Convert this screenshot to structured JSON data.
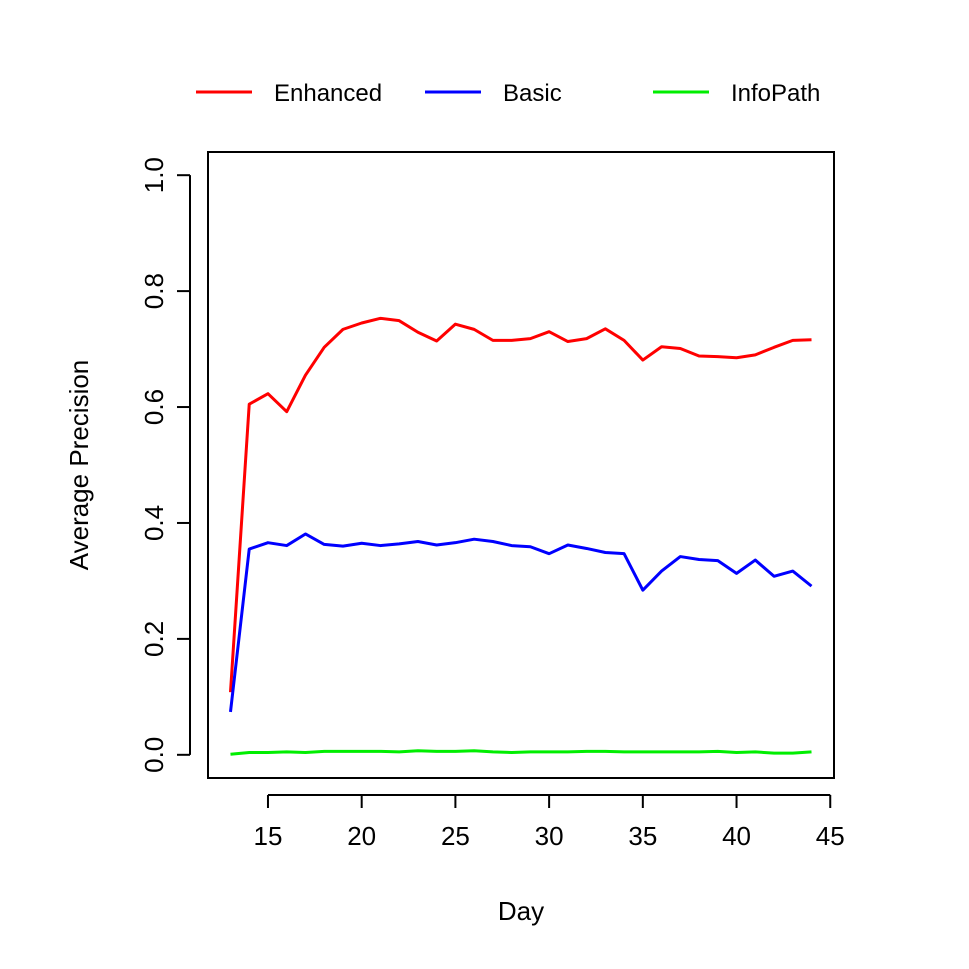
{
  "chart_data": {
    "type": "line",
    "title": "",
    "xlabel": "Day",
    "ylabel": "Average Precision",
    "xlim": [
      11.8,
      45.2
    ],
    "ylim": [
      -0.04,
      1.04
    ],
    "xticks": [
      15,
      20,
      25,
      30,
      35,
      40,
      45
    ],
    "yticks": [
      0.0,
      0.2,
      0.4,
      0.6,
      0.8,
      1.0
    ],
    "ytick_labels": [
      "0.0",
      "0.2",
      "0.4",
      "0.6",
      "0.8",
      "1.0"
    ],
    "grid": false,
    "legend_position": "top",
    "x": [
      13,
      14,
      15,
      16,
      17,
      18,
      19,
      20,
      21,
      22,
      23,
      24,
      25,
      26,
      27,
      28,
      29,
      30,
      31,
      32,
      33,
      34,
      35,
      36,
      37,
      38,
      39,
      40,
      41,
      42,
      43,
      44
    ],
    "series": [
      {
        "name": "Enhanced",
        "color": "#ff0000",
        "values": [
          0.108,
          0.605,
          0.623,
          0.592,
          0.655,
          0.703,
          0.734,
          0.745,
          0.753,
          0.749,
          0.729,
          0.714,
          0.743,
          0.734,
          0.715,
          0.715,
          0.718,
          0.73,
          0.713,
          0.718,
          0.735,
          0.715,
          0.681,
          0.704,
          0.701,
          0.688,
          0.687,
          0.685,
          0.69,
          0.703,
          0.715,
          0.716
        ]
      },
      {
        "name": "Basic",
        "color": "#0000ff",
        "values": [
          0.074,
          0.355,
          0.366,
          0.361,
          0.381,
          0.363,
          0.36,
          0.365,
          0.361,
          0.364,
          0.368,
          0.362,
          0.366,
          0.372,
          0.368,
          0.361,
          0.359,
          0.347,
          0.362,
          0.356,
          0.349,
          0.347,
          0.284,
          0.317,
          0.342,
          0.337,
          0.335,
          0.313,
          0.336,
          0.308,
          0.317,
          0.291
        ]
      },
      {
        "name": "InfoPath",
        "color": "#00ee00",
        "values": [
          0.001,
          0.004,
          0.004,
          0.005,
          0.004,
          0.006,
          0.006,
          0.006,
          0.006,
          0.005,
          0.007,
          0.006,
          0.006,
          0.007,
          0.005,
          0.004,
          0.005,
          0.005,
          0.005,
          0.006,
          0.006,
          0.005,
          0.005,
          0.005,
          0.005,
          0.005,
          0.006,
          0.004,
          0.005,
          0.003,
          0.003,
          0.005
        ]
      }
    ]
  }
}
